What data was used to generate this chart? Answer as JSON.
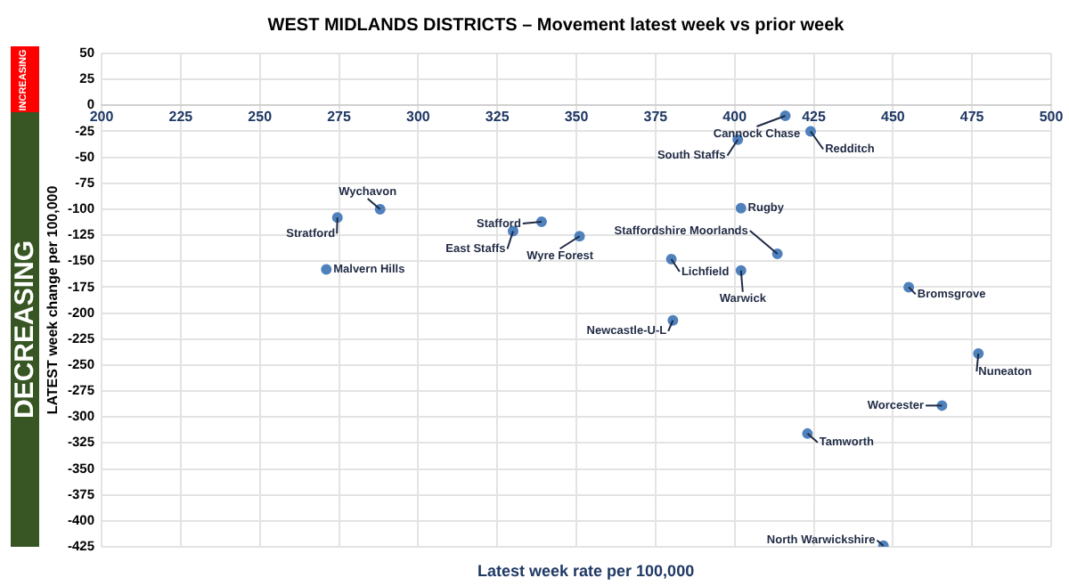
{
  "chart_data": {
    "type": "scatter",
    "title": "WEST MIDLANDS DISTRICTS – Movement latest week vs prior week",
    "xlabel": "Latest week rate per 100,000",
    "ylabel": "LATEST week change per 100,000",
    "x": [
      416,
      401,
      424,
      288,
      274.5,
      271,
      339,
      330,
      351,
      380,
      380.5,
      402,
      413.5,
      402,
      455,
      477,
      465.5,
      423,
      447
    ],
    "series": [
      {
        "color": "#4f81bd",
        "values": [
          -10,
          -33,
          -25,
          -100,
          -108,
          -158,
          -112,
          -121,
          -126,
          -148,
          -207,
          -99,
          -143,
          -159,
          -175,
          -239,
          -289,
          -316,
          -424
        ]
      }
    ],
    "annotations": [
      {
        "text": "Cannock Chase",
        "x": 416,
        "y": -10
      },
      {
        "text": "South Staffs",
        "x": 401,
        "y": -33
      },
      {
        "text": "Redditch",
        "x": 424,
        "y": -25
      },
      {
        "text": "Wychavon",
        "x": 288,
        "y": -100
      },
      {
        "text": "Stratford",
        "x": 274.5,
        "y": -108
      },
      {
        "text": "Malvern Hills",
        "x": 271,
        "y": -158
      },
      {
        "text": "Stafford",
        "x": 339,
        "y": -112
      },
      {
        "text": "East Staffs",
        "x": 330,
        "y": -121
      },
      {
        "text": "Wyre Forest",
        "x": 351,
        "y": -126
      },
      {
        "text": "Lichfield",
        "x": 380,
        "y": -148
      },
      {
        "text": "Newcastle-U-L",
        "x": 380.5,
        "y": -207
      },
      {
        "text": "Rugby",
        "x": 402,
        "y": -99
      },
      {
        "text": "Staffordshire Moorlands",
        "x": 413.5,
        "y": -143
      },
      {
        "text": "Warwick",
        "x": 402,
        "y": -159
      },
      {
        "text": "Bromsgrove",
        "x": 455,
        "y": -175
      },
      {
        "text": "Nuneaton",
        "x": 477,
        "y": -239
      },
      {
        "text": "Worcester",
        "x": 465.5,
        "y": -289
      },
      {
        "text": "Tamworth",
        "x": 423,
        "y": -316
      },
      {
        "text": "North Warwickshire",
        "x": 447,
        "y": -424
      },
      "INCREASING",
      "DECREASING"
    ],
    "xlim": [
      200,
      500
    ],
    "xticks": [
      200,
      225,
      250,
      275,
      300,
      325,
      350,
      375,
      400,
      425,
      450,
      475,
      500
    ],
    "ylim": [
      -425,
      50
    ],
    "yticks": [
      50,
      25,
      0,
      -25,
      -50,
      -75,
      -100,
      -125,
      -150,
      -175,
      -200,
      -225,
      -250,
      -275,
      -300,
      -325,
      -350,
      -375,
      -400,
      -425
    ],
    "grid": true,
    "legend": false,
    "marker": "circle"
  }
}
